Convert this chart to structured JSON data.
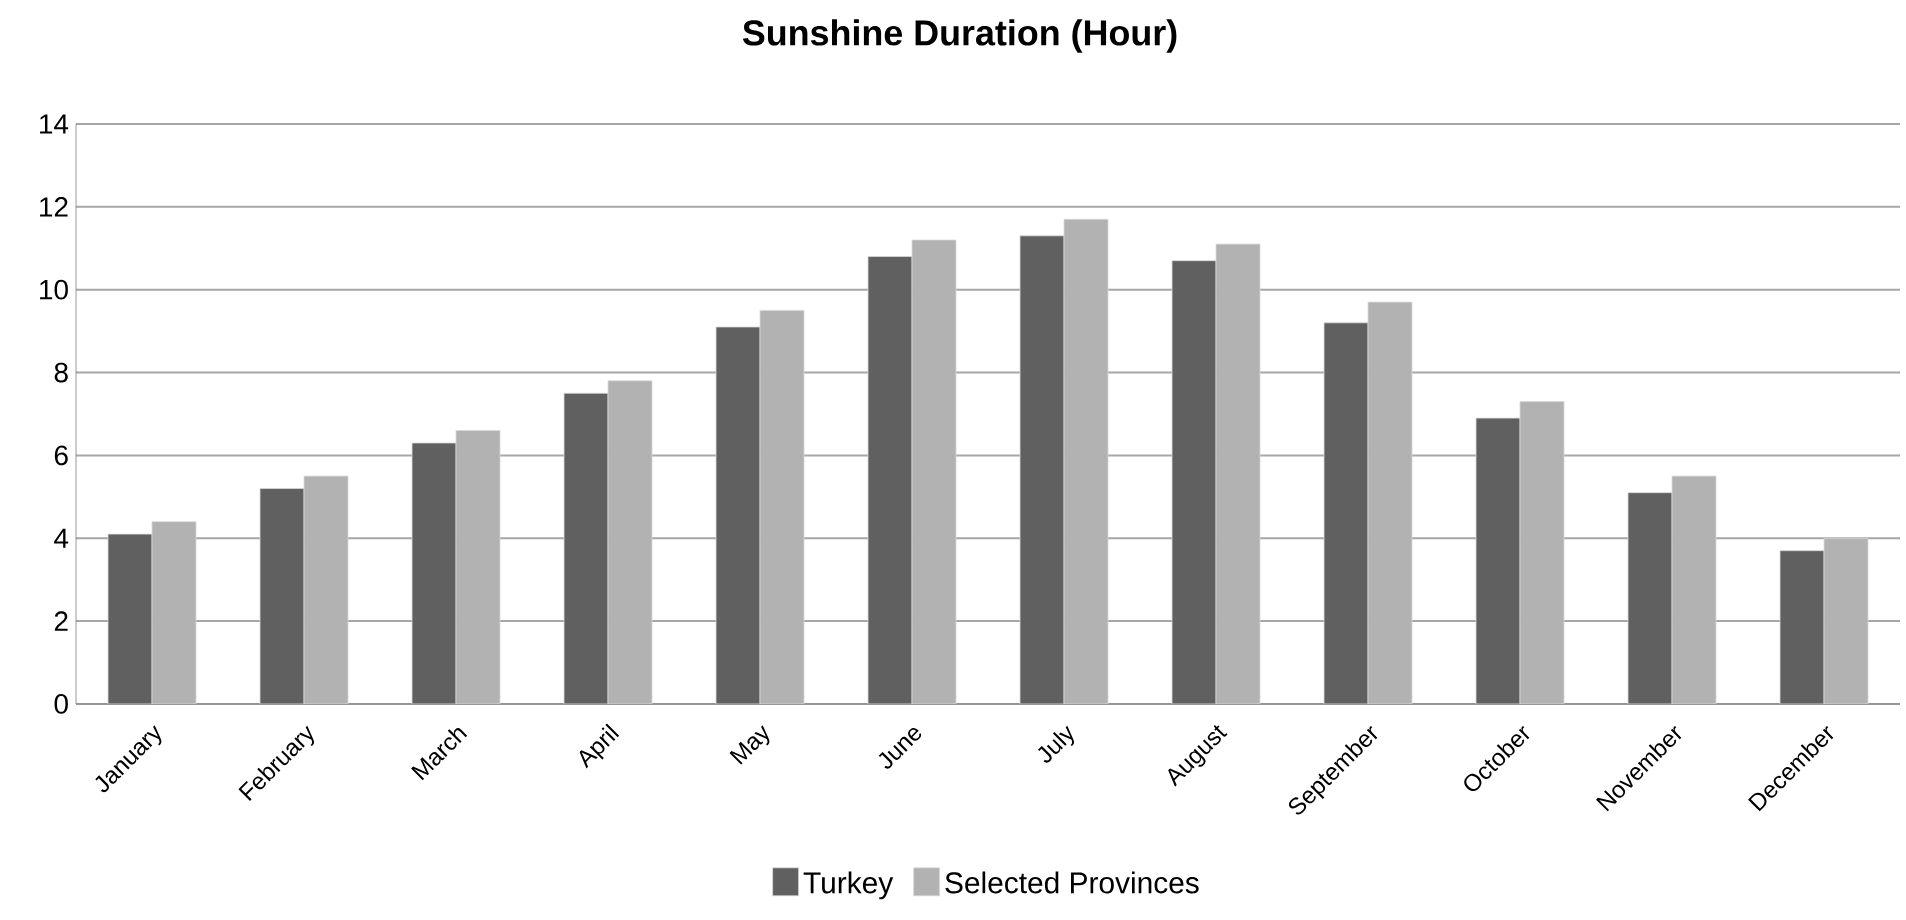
{
  "chart_data": {
    "type": "bar",
    "title": "Sunshine Duration (Hour)",
    "categories": [
      "January",
      "February",
      "March",
      "April",
      "May",
      "June",
      "July",
      "August",
      "September",
      "October",
      "November",
      "December"
    ],
    "series": [
      {
        "name": "Turkey",
        "color": "#606060",
        "values": [
          4.1,
          5.2,
          6.3,
          7.5,
          9.1,
          10.8,
          11.3,
          10.7,
          9.2,
          6.9,
          5.1,
          3.7
        ]
      },
      {
        "name": "Selected Provinces",
        "color": "#b2b2b2",
        "values": [
          4.4,
          5.5,
          6.6,
          7.8,
          9.5,
          11.2,
          11.7,
          11.1,
          9.7,
          7.3,
          5.5,
          4.0
        ]
      }
    ],
    "ylim": [
      0,
      14
    ],
    "yticks": [
      0,
      2,
      4,
      6,
      8,
      10,
      12,
      14
    ],
    "grid": "y",
    "legend": "bottom"
  }
}
